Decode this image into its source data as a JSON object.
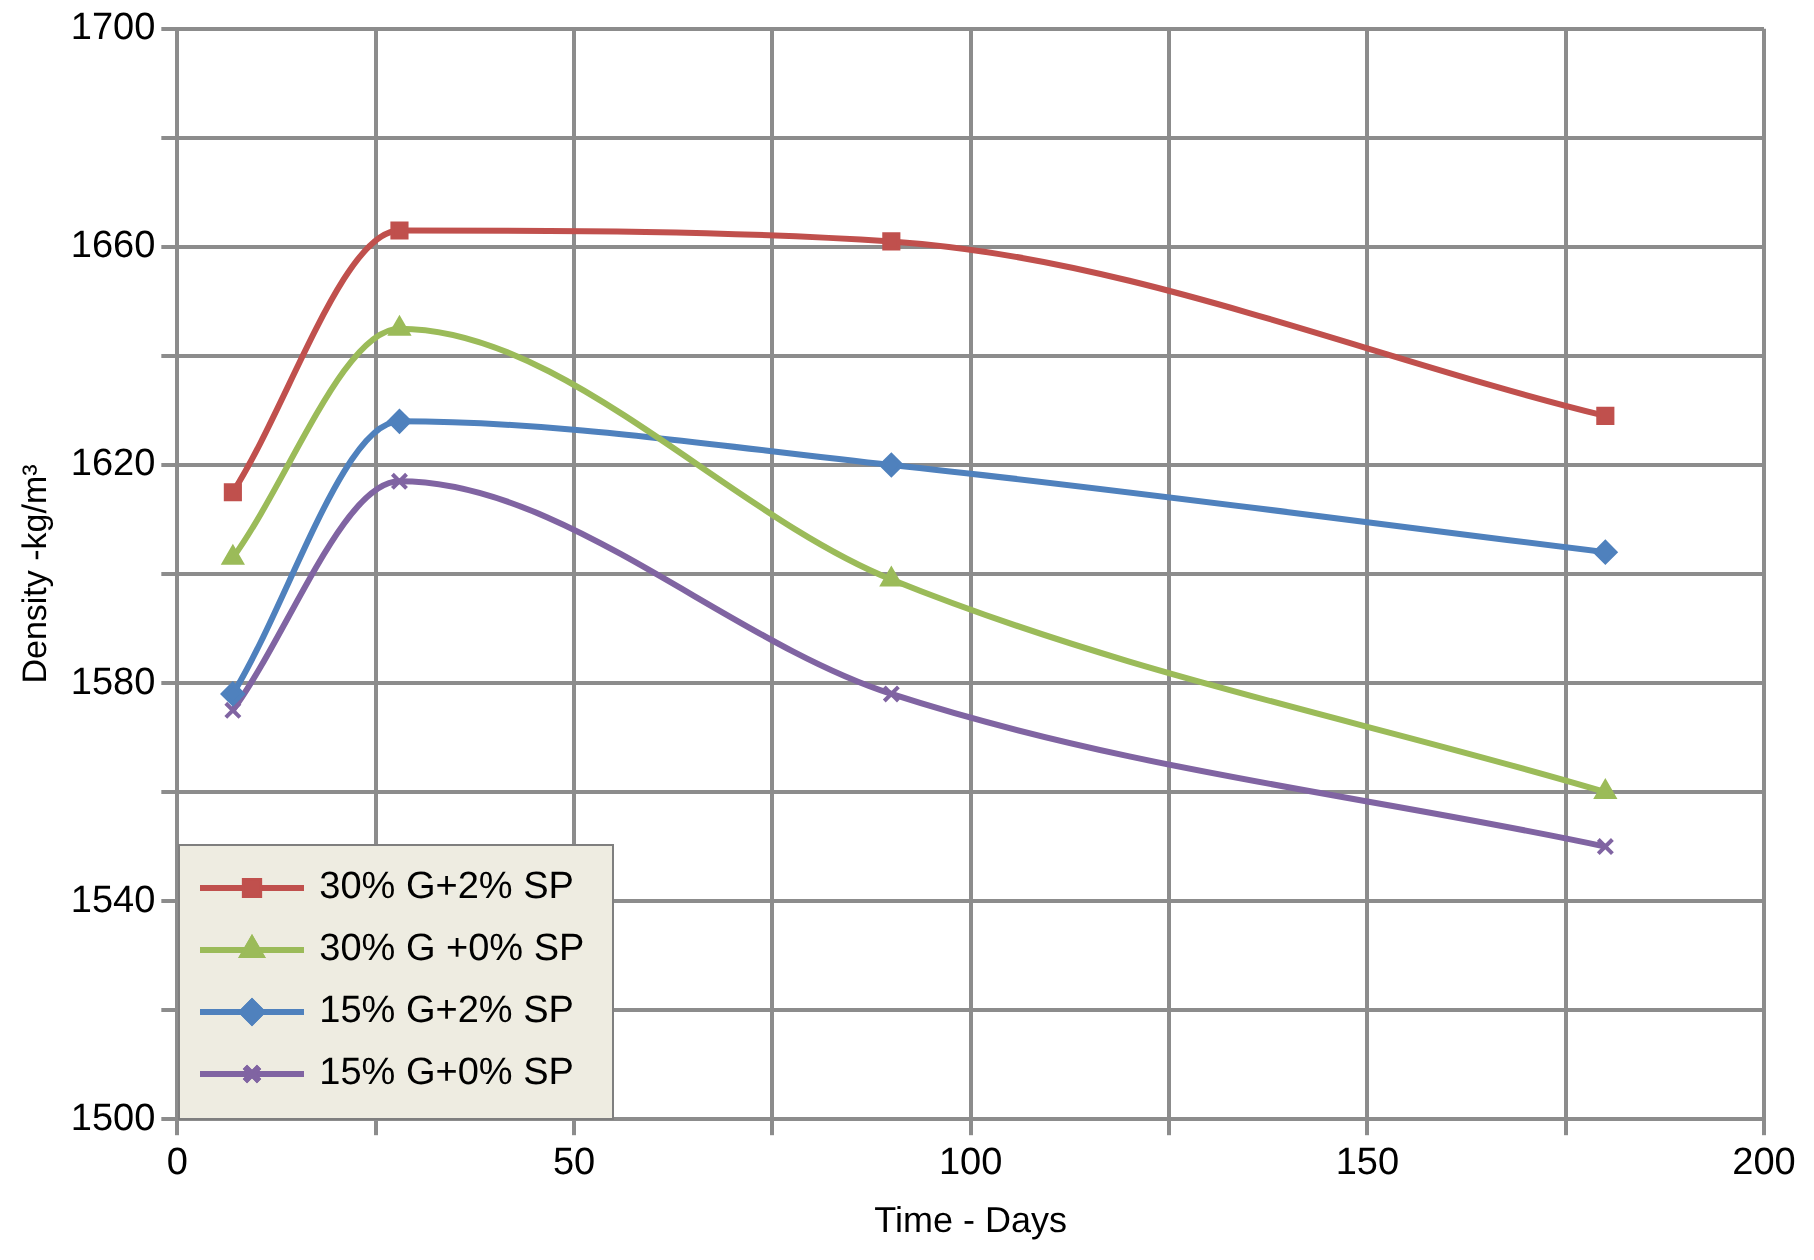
{
  "chart_data": {
    "type": "line",
    "xlabel": "Time - Days",
    "ylabel": "Density -kg/m³",
    "xlim": [
      0,
      200
    ],
    "xticks": [
      0,
      {
        "value": 25,
        "label": null
      },
      50,
      {
        "value": 75,
        "label": null
      },
      100,
      {
        "value": 125,
        "label": null
      },
      150,
      {
        "value": 175,
        "label": null
      },
      200
    ],
    "ylim": [
      1500,
      1700
    ],
    "yticks": [
      1500,
      {
        "value": 1520,
        "label": null
      },
      1540,
      {
        "value": 1560,
        "label": null
      },
      1580,
      {
        "value": 1600,
        "label": null
      },
      1620,
      {
        "value": 1640,
        "label": null
      },
      1660,
      {
        "value": 1680,
        "label": null
      },
      1700
    ],
    "grid": true,
    "legend": "bottom left",
    "line_style": "solid",
    "x": [
      7,
      28,
      90,
      180
    ],
    "series": [
      {
        "name": "30% G+2% SP",
        "color": "#c0504d",
        "marker": "square",
        "values": [
          1615,
          1663,
          1661,
          1629
        ]
      },
      {
        "name": "30% G +0% SP",
        "color": "#9bbb59",
        "marker": "triangle",
        "values": [
          1603,
          1645,
          1599,
          1560
        ]
      },
      {
        "name": "15% G+2% SP",
        "color": "#4f81bd",
        "marker": "diamond",
        "values": [
          1578,
          1628,
          1620,
          1604
        ]
      },
      {
        "name": "15% G+0% SP",
        "color": "#8064a2",
        "marker": "cross",
        "values": [
          1575,
          1617,
          1578,
          1550
        ]
      }
    ]
  }
}
